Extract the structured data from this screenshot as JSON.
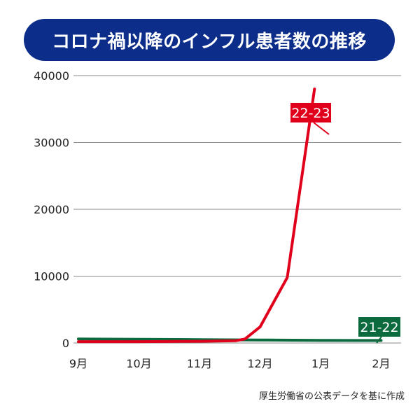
{
  "title": "コロナ禍以降のインフル患者数の推移",
  "source": "厚生労働省の公表データを基に作成",
  "chart_data": {
    "type": "line",
    "title": "コロナ禍以降のインフル患者数の推移",
    "xlabel": "",
    "ylabel": "",
    "categories": [
      "9月",
      "10月",
      "11月",
      "12月",
      "1月",
      "2月"
    ],
    "ylim": [
      0,
      40000
    ],
    "yticks": [
      "0",
      "10000",
      "20000",
      "30000",
      "40000"
    ],
    "grid": true,
    "series": [
      {
        "name": "22-23",
        "color": "#e0001b",
        "x": [
          0.0,
          1.0,
          2.0,
          2.6,
          2.75,
          3.0,
          3.45,
          3.9
        ],
        "y": [
          200,
          200,
          250,
          350,
          600,
          2400,
          9800,
          38000
        ]
      },
      {
        "name": "21-22",
        "color": "#0b6b3f",
        "x": [
          0.0,
          1.0,
          2.0,
          3.0,
          4.0,
          5.0
        ],
        "y": [
          600,
          550,
          500,
          450,
          400,
          380
        ]
      }
    ]
  }
}
